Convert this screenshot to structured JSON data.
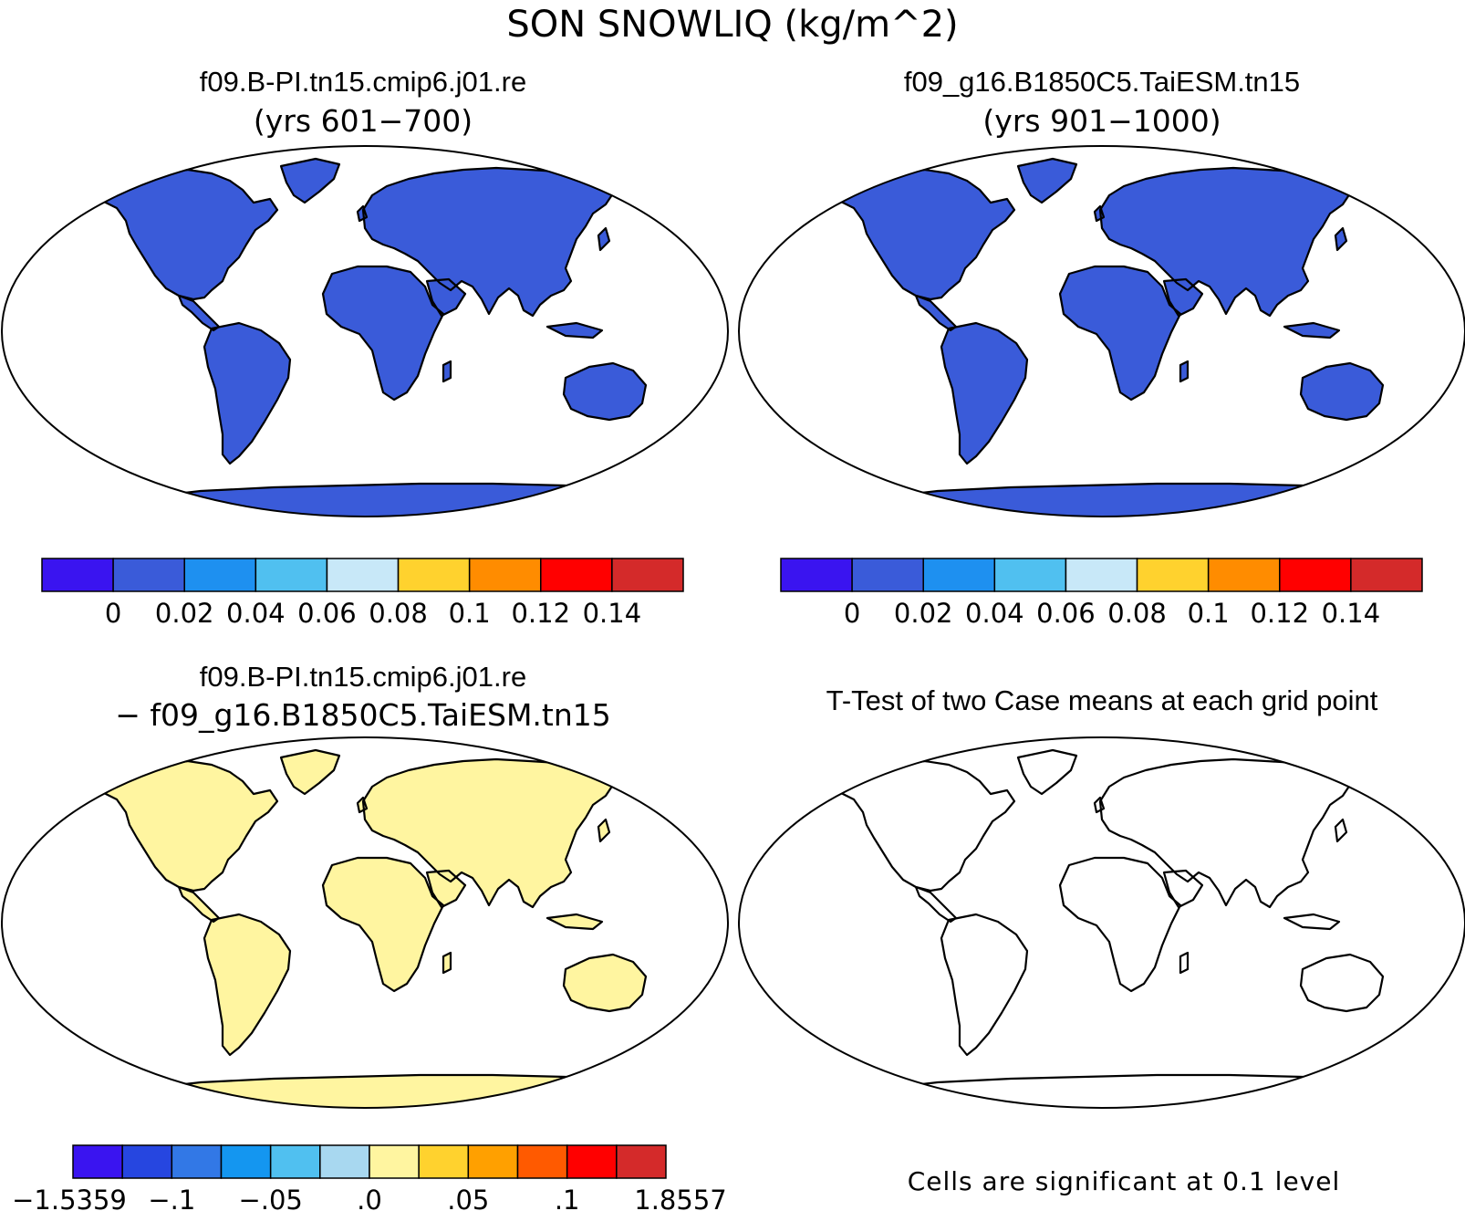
{
  "title": "SON SNOWLIQ (kg/m^2)",
  "colors": {
    "ocean": "#ffffff",
    "coast": "#000000",
    "abs_base": "#3a5bd9",
    "abs_levels": [
      "#3a14f0",
      "#3a5bd9",
      "#1e90f0",
      "#50c0f0",
      "#c8e8f8",
      "#ffd22e",
      "#ff8c00",
      "#ff0000",
      "#d42a2a"
    ],
    "diff_base": "#fff5a0",
    "diff_levels": [
      "#3a14f0",
      "#2646e0",
      "#3278e6",
      "#1496f0",
      "#50c0f0",
      "#a8d8f0",
      "#fff5a0",
      "#ffd22e",
      "#ffa000",
      "#ff5a00",
      "#ff0000",
      "#d42a2a"
    ],
    "sig": "#ff0000"
  },
  "panels": [
    {
      "id": "case1",
      "kind": "absolute",
      "title_line1": "f09.B-PI.tn15.cmip6.j01.re",
      "title_line2": "(yrs 601−700)",
      "colorbar_labels": [
        "0",
        "0.02",
        "0.04",
        "0.06",
        "0.08",
        "0.1",
        "0.12",
        "0.14"
      ]
    },
    {
      "id": "case2",
      "kind": "absolute",
      "title_line1": "f09_g16.B1850C5.TaiESM.tn15",
      "title_line2": "(yrs 901−1000)",
      "colorbar_labels": [
        "0",
        "0.02",
        "0.04",
        "0.06",
        "0.08",
        "0.1",
        "0.12",
        "0.14"
      ]
    },
    {
      "id": "diff",
      "kind": "difference",
      "title_line1": "f09.B-PI.tn15.cmip6.j01.re",
      "title_line2": "− f09_g16.B1850C5.TaiESM.tn15",
      "colorbar_labels": [
        "−1.5359",
        "−.1",
        "−.05",
        ".0",
        ".05",
        ".1",
        "1.8557"
      ]
    },
    {
      "id": "ttest",
      "kind": "significance",
      "title_line1": "T-Test of two Case means at each grid point",
      "note": "Cells are significant at 0.1 level"
    }
  ]
}
